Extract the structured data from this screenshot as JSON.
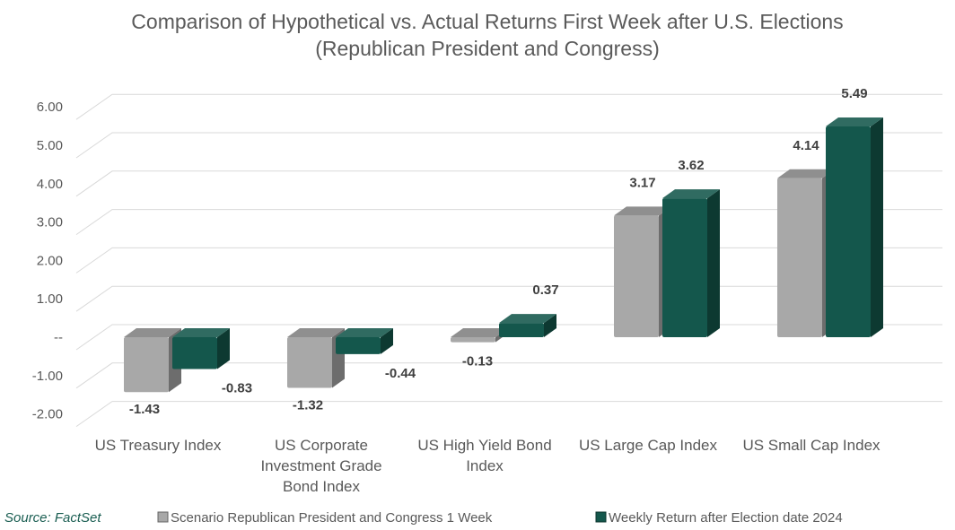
{
  "chart_data": {
    "type": "bar",
    "title_lines": [
      "Comparison of Hypothetical vs. Actual Returns First Week after U.S. Elections",
      "(Republican President and Congress)"
    ],
    "categories": [
      [
        "US Treasury Index"
      ],
      [
        "US Corporate",
        "Investment Grade",
        "Bond Index"
      ],
      [
        "US High Yield Bond",
        "Index"
      ],
      [
        "US Large Cap Index"
      ],
      [
        "US Small Cap Index"
      ]
    ],
    "series": [
      {
        "name": "Scenario Republican President and Congress 1 Week",
        "values": [
          -1.43,
          -1.32,
          -0.13,
          3.17,
          4.14
        ],
        "labels": [
          "-1.43",
          "-1.32",
          "-0.13",
          "3.17",
          "4.14"
        ],
        "color": "#a8a8a8"
      },
      {
        "name": "Weekly Return after Election date 2024",
        "values": [
          -0.83,
          -0.44,
          0.37,
          3.62,
          5.49
        ],
        "labels": [
          "-0.83",
          "-0.44",
          "0.37",
          "3.62",
          "5.49"
        ],
        "color": "#14574c"
      }
    ],
    "yticks": [
      {
        "value": 6,
        "label": "6.00"
      },
      {
        "value": 5,
        "label": "5.00"
      },
      {
        "value": 4,
        "label": "4.00"
      },
      {
        "value": 3,
        "label": "3.00"
      },
      {
        "value": 2,
        "label": "2.00"
      },
      {
        "value": 1,
        "label": "1.00"
      },
      {
        "value": 0,
        "label": "--"
      },
      {
        "value": -1,
        "label": "-1.00"
      },
      {
        "value": -2,
        "label": "-2.00"
      }
    ],
    "ylim": [
      -2,
      6.5
    ],
    "grid": true,
    "legend_position": "bottom",
    "source": "Source: FactSet"
  }
}
